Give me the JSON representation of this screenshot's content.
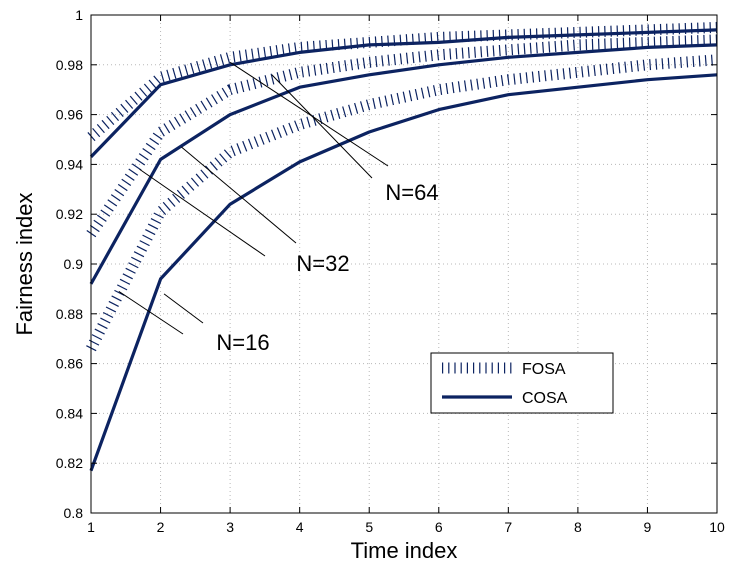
{
  "chart_data": {
    "type": "line",
    "xlabel": "Time index",
    "ylabel": "Fairness index",
    "xlim": [
      1,
      10
    ],
    "ylim": [
      0.8,
      1.0
    ],
    "x_ticks": [
      "1",
      "2",
      "3",
      "4",
      "5",
      "6",
      "7",
      "8",
      "9",
      "10"
    ],
    "y_ticks": [
      "0.8",
      "0.82",
      "0.84",
      "0.86",
      "0.88",
      "0.9",
      "0.92",
      "0.94",
      "0.96",
      "0.98",
      "1"
    ],
    "grid": true,
    "x": [
      1,
      2,
      3,
      4,
      5,
      6,
      7,
      8,
      9,
      10
    ],
    "series": [
      {
        "group": "N=64",
        "method": "COSA",
        "values": [
          0.943,
          0.972,
          0.98,
          0.985,
          0.988,
          0.989,
          0.991,
          0.992,
          0.993,
          0.994
        ]
      },
      {
        "group": "N=64",
        "method": "FOSA",
        "values": [
          0.951,
          0.975,
          0.983,
          0.987,
          0.989,
          0.991,
          0.992,
          0.993,
          0.994,
          0.995
        ]
      },
      {
        "group": "N=32",
        "method": "COSA",
        "values": [
          0.892,
          0.942,
          0.96,
          0.971,
          0.976,
          0.98,
          0.983,
          0.985,
          0.987,
          0.988
        ]
      },
      {
        "group": "N=32",
        "method": "FOSA",
        "values": [
          0.912,
          0.953,
          0.97,
          0.977,
          0.981,
          0.984,
          0.986,
          0.988,
          0.989,
          0.99
        ]
      },
      {
        "group": "N=16",
        "method": "COSA",
        "values": [
          0.817,
          0.894,
          0.924,
          0.941,
          0.953,
          0.962,
          0.968,
          0.971,
          0.974,
          0.976
        ]
      },
      {
        "group": "N=16",
        "method": "FOSA",
        "values": [
          0.866,
          0.921,
          0.945,
          0.956,
          0.964,
          0.97,
          0.974,
          0.977,
          0.98,
          0.982
        ]
      }
    ],
    "annotations": [
      {
        "text": "N=64",
        "group": "N=64"
      },
      {
        "text": "N=32",
        "group": "N=32"
      },
      {
        "text": "N=16",
        "group": "N=16"
      }
    ],
    "legend": {
      "position": "lower-right",
      "entries": [
        {
          "label": "FOSA",
          "style": "dotted"
        },
        {
          "label": "COSA",
          "style": "solid"
        }
      ]
    },
    "colors": {
      "line": "#0c2361",
      "grid": "#b8b8b8",
      "axis": "#000000"
    }
  }
}
